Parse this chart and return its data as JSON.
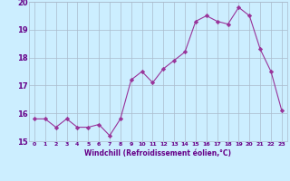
{
  "x": [
    0,
    1,
    2,
    3,
    4,
    5,
    6,
    7,
    8,
    9,
    10,
    11,
    12,
    13,
    14,
    15,
    16,
    17,
    18,
    19,
    20,
    21,
    22,
    23
  ],
  "y": [
    15.8,
    15.8,
    15.5,
    15.8,
    15.5,
    15.5,
    15.6,
    15.2,
    15.8,
    17.2,
    17.5,
    17.1,
    17.6,
    17.9,
    18.2,
    19.3,
    19.5,
    19.3,
    19.2,
    19.8,
    19.5,
    18.3,
    17.5,
    16.1
  ],
  "line_color": "#993399",
  "marker": "D",
  "marker_size": 2.2,
  "bg_color": "#cceeff",
  "grid_color": "#aabbcc",
  "xlabel": "Windchill (Refroidissement éolien,°C)",
  "xlabel_color": "#660088",
  "tick_color": "#660088",
  "ylim": [
    15.0,
    20.0
  ],
  "xlim": [
    -0.5,
    23.5
  ],
  "yticks": [
    15,
    16,
    17,
    18,
    19,
    20
  ],
  "xticks": [
    0,
    1,
    2,
    3,
    4,
    5,
    6,
    7,
    8,
    9,
    10,
    11,
    12,
    13,
    14,
    15,
    16,
    17,
    18,
    19,
    20,
    21,
    22,
    23
  ]
}
